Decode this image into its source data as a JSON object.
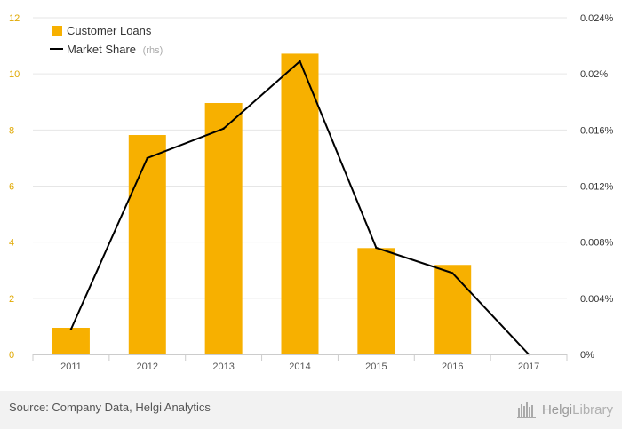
{
  "chart_data": {
    "type": "bar+line",
    "categories": [
      "2011",
      "2012",
      "2013",
      "2014",
      "2015",
      "2016",
      "2017"
    ],
    "series": [
      {
        "name": "Customer Loans",
        "type": "bar",
        "axis": "left",
        "color": "#f7b000",
        "values": [
          0.95,
          7.82,
          8.96,
          10.72,
          3.79,
          3.19,
          0
        ]
      },
      {
        "name": "Market Share",
        "name_suffix": "(rhs)",
        "type": "line",
        "axis": "right",
        "color": "#000000",
        "values": [
          0.0018,
          0.014,
          0.0161,
          0.0209,
          0.0076,
          0.0058,
          0
        ]
      }
    ],
    "y_left": {
      "min": 0,
      "max": 12,
      "ticks": [
        "0",
        "2",
        "4",
        "6",
        "8",
        "10",
        "12"
      ]
    },
    "y_right": {
      "min": 0,
      "max": 0.024,
      "ticks": [
        "0%",
        "0.004%",
        "0.008%",
        "0.012%",
        "0.016%",
        "0.02%",
        "0.024%"
      ]
    },
    "grid": true,
    "legend_position": "top-left"
  },
  "footer": {
    "source": "Source: Company Data, Helgi Analytics",
    "brand_part1": "Helgi",
    "brand_part2": "Library"
  }
}
